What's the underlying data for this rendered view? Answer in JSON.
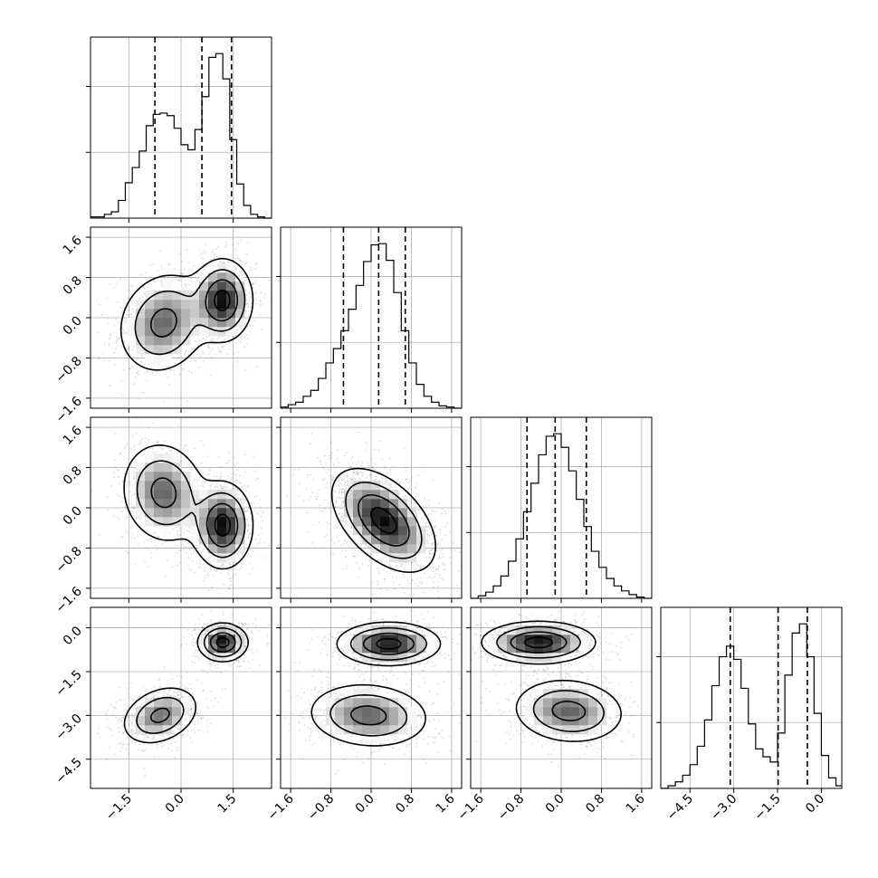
{
  "chart_data": {
    "type": "corner",
    "parameters": 4,
    "grid": true,
    "parameter_ranges": [
      [
        -2.6,
        2.6
      ],
      [
        -1.8,
        1.8
      ],
      [
        -1.8,
        1.8
      ],
      [
        -5.5,
        0.7
      ]
    ],
    "ticks": [
      {
        "values": [
          -1.5,
          0.0,
          1.5
        ],
        "labels": [
          "−1.5",
          "0.0",
          "1.5"
        ]
      },
      {
        "values": [
          -1.6,
          -0.8,
          0.0,
          0.8,
          1.6
        ],
        "labels": [
          "−1.6",
          "−0.8",
          "0.0",
          "0.8",
          "1.6"
        ]
      },
      {
        "values": [
          -1.6,
          -0.8,
          0.0,
          0.8,
          1.6
        ],
        "labels": [
          "−1.6",
          "−0.8",
          "0.0",
          "0.8",
          "1.6"
        ]
      },
      {
        "values": [
          -4.5,
          -3.0,
          -1.5,
          0.0
        ],
        "labels": [
          "−4.5",
          "−3.0",
          "−1.5",
          "0.0"
        ]
      }
    ],
    "histograms": [
      {
        "parameter": 0,
        "bin_edges": [
          -2.6,
          -2.4,
          -2.2,
          -2.0,
          -1.8,
          -1.6,
          -1.4,
          -1.2,
          -1.0,
          -0.8,
          -0.6,
          -0.4,
          -0.2,
          0.0,
          0.2,
          0.4,
          0.6,
          0.8,
          1.0,
          1.2,
          1.4,
          1.6,
          1.8,
          2.0,
          2.2,
          2.4,
          2.6
        ],
        "counts": [
          1,
          1,
          3,
          5,
          14,
          28,
          40,
          53,
          73,
          82,
          83,
          81,
          71,
          58,
          54,
          70,
          96,
          127,
          130,
          110,
          62,
          27,
          10,
          3,
          1,
          0
        ],
        "quantiles": [
          -0.75,
          0.6,
          1.45
        ]
      },
      {
        "parameter": 1,
        "bin_edges": [
          -1.8,
          -1.65,
          -1.5,
          -1.35,
          -1.2,
          -1.05,
          -0.9,
          -0.75,
          -0.6,
          -0.45,
          -0.3,
          -0.15,
          0.0,
          0.15,
          0.3,
          0.45,
          0.6,
          0.75,
          0.9,
          1.05,
          1.2,
          1.35,
          1.5,
          1.65,
          1.8
        ],
        "counts": [
          1,
          3,
          5,
          10,
          15,
          25,
          38,
          50,
          65,
          83,
          103,
          123,
          137,
          138,
          124,
          97,
          65,
          38,
          20,
          10,
          5,
          2,
          1,
          0
        ],
        "quantiles": [
          -0.55,
          0.15,
          0.68
        ]
      },
      {
        "parameter": 2,
        "bin_edges": [
          -1.8,
          -1.65,
          -1.5,
          -1.35,
          -1.2,
          -1.05,
          -0.9,
          -0.75,
          -0.6,
          -0.45,
          -0.3,
          -0.15,
          0.0,
          0.15,
          0.3,
          0.45,
          0.6,
          0.75,
          0.9,
          1.05,
          1.2,
          1.35,
          1.5,
          1.65,
          1.8
        ],
        "counts": [
          0,
          2,
          5,
          10,
          18,
          30,
          48,
          70,
          93,
          116,
          131,
          133,
          122,
          103,
          80,
          58,
          38,
          25,
          16,
          10,
          6,
          3,
          1,
          0
        ],
        "quantiles": [
          -0.68,
          -0.12,
          0.5
        ]
      },
      {
        "parameter": 3,
        "bin_edges": [
          -5.5,
          -5.25,
          -5.0,
          -4.75,
          -4.5,
          -4.25,
          -4.0,
          -3.75,
          -3.5,
          -3.25,
          -3.0,
          -2.75,
          -2.5,
          -2.25,
          -2.0,
          -1.75,
          -1.5,
          -1.25,
          -1.0,
          -0.75,
          -0.5,
          -0.25,
          0.0,
          0.25,
          0.5,
          0.7
        ],
        "counts": [
          0,
          2,
          5,
          10,
          18,
          32,
          52,
          78,
          100,
          108,
          98,
          76,
          49,
          30,
          24,
          20,
          42,
          86,
          118,
          125,
          100,
          57,
          25,
          8,
          2
        ],
        "quantiles": [
          -3.12,
          -1.48,
          -0.48
        ]
      }
    ],
    "density_blobs": [
      {
        "x": 0,
        "y": 1,
        "modes": [
          {
            "cx": -0.5,
            "cy": -0.1,
            "sx": 0.65,
            "sy": 0.5,
            "rho": 0.15,
            "weight": 1.0
          },
          {
            "cx": 1.2,
            "cy": 0.35,
            "sx": 0.42,
            "sy": 0.4,
            "rho": 0.0,
            "weight": 1.4
          }
        ]
      },
      {
        "x": 0,
        "y": 2,
        "modes": [
          {
            "cx": -0.5,
            "cy": 0.3,
            "sx": 0.6,
            "sy": 0.5,
            "rho": -0.1,
            "weight": 1.0
          },
          {
            "cx": 1.2,
            "cy": -0.35,
            "sx": 0.42,
            "sy": 0.42,
            "rho": 0.0,
            "weight": 1.4
          }
        ]
      },
      {
        "x": 1,
        "y": 2,
        "modes": [
          {
            "cx": 0.25,
            "cy": -0.25,
            "sx": 0.5,
            "sy": 0.5,
            "rho": -0.5,
            "weight": 1.0
          }
        ]
      },
      {
        "x": 0,
        "y": 3,
        "modes": [
          {
            "cx": -0.6,
            "cy": -3.0,
            "sx": 0.55,
            "sy": 0.5,
            "rho": 0.3,
            "weight": 1.0
          },
          {
            "cx": 1.2,
            "cy": -0.5,
            "sx": 0.35,
            "sy": 0.32,
            "rho": 0.0,
            "weight": 1.5
          }
        ]
      },
      {
        "x": 1,
        "y": 3,
        "modes": [
          {
            "cx": -0.05,
            "cy": -3.0,
            "sx": 0.6,
            "sy": 0.55,
            "rho": -0.1,
            "weight": 1.0
          },
          {
            "cx": 0.35,
            "cy": -0.55,
            "sx": 0.5,
            "sy": 0.36,
            "rho": 0.0,
            "weight": 1.4
          }
        ]
      },
      {
        "x": 2,
        "y": 3,
        "modes": [
          {
            "cx": 0.15,
            "cy": -2.85,
            "sx": 0.55,
            "sy": 0.55,
            "rho": -0.1,
            "weight": 1.0
          },
          {
            "cx": -0.45,
            "cy": -0.5,
            "sx": 0.55,
            "sy": 0.35,
            "rho": 0.0,
            "weight": 1.4
          }
        ]
      }
    ]
  }
}
